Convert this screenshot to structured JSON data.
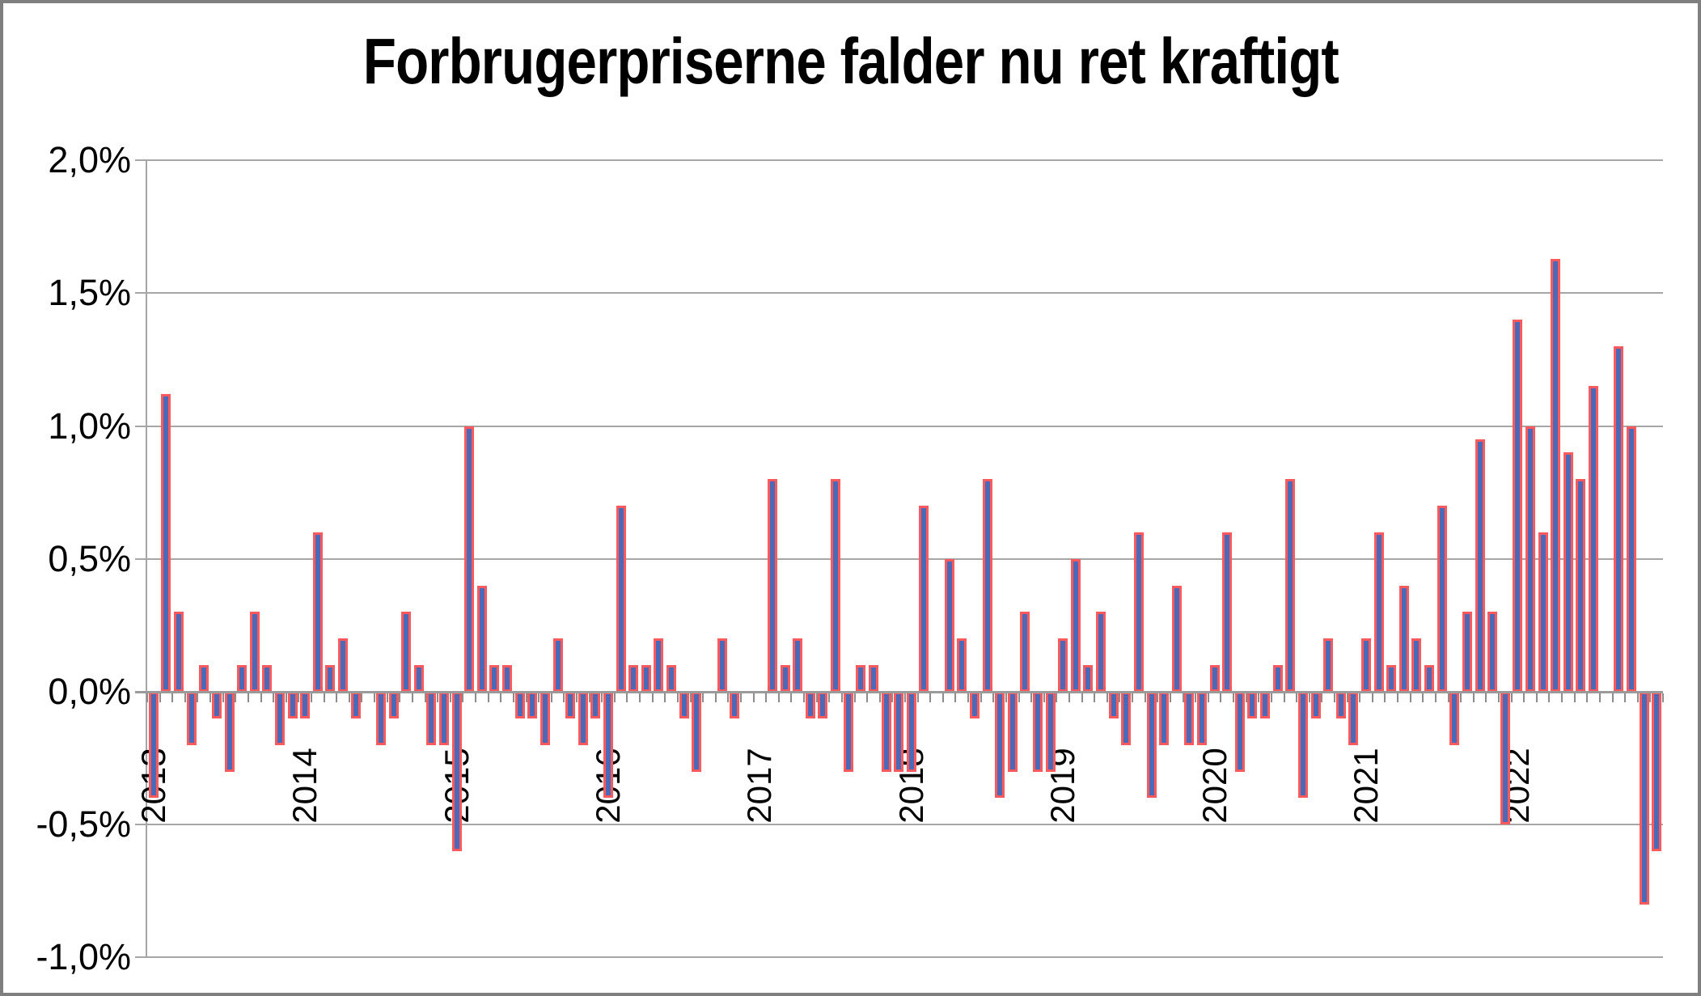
{
  "title": "Forbrugerpriserne falder nu ret kraftigt",
  "chart_data": {
    "type": "bar",
    "title": "Forbrugerpriserne falder nu ret kraftigt",
    "x_frequency": "monthly",
    "x_start": "2013-01",
    "x_end": "2022-12",
    "year_labels": [
      "2013",
      "2014",
      "2015",
      "2016",
      "2017",
      "2018",
      "2019",
      "2020",
      "2021",
      "2022"
    ],
    "values": [
      -0.4,
      1.12,
      0.3,
      -0.2,
      0.1,
      -0.1,
      -0.3,
      0.1,
      0.3,
      0.1,
      -0.2,
      -0.1,
      -0.1,
      0.6,
      0.1,
      0.2,
      -0.1,
      0.0,
      -0.2,
      -0.1,
      0.3,
      0.1,
      -0.2,
      -0.2,
      -0.6,
      1.0,
      0.4,
      0.1,
      0.1,
      -0.1,
      -0.1,
      -0.2,
      0.2,
      -0.1,
      -0.2,
      -0.1,
      -0.4,
      0.7,
      0.1,
      0.1,
      0.2,
      0.1,
      -0.1,
      -0.3,
      0.0,
      0.2,
      -0.1,
      0.0,
      0.0,
      0.8,
      0.1,
      0.2,
      -0.1,
      -0.1,
      0.8,
      -0.3,
      0.1,
      0.1,
      -0.3,
      -0.3,
      -0.3,
      0.7,
      0.0,
      0.5,
      0.2,
      -0.1,
      0.8,
      -0.4,
      -0.3,
      0.3,
      -0.3,
      -0.3,
      0.2,
      0.5,
      0.1,
      0.3,
      -0.1,
      -0.2,
      0.6,
      -0.4,
      -0.2,
      0.4,
      -0.2,
      -0.2,
      0.1,
      0.6,
      -0.3,
      -0.1,
      -0.1,
      0.1,
      0.8,
      -0.4,
      -0.1,
      0.2,
      -0.1,
      -0.2,
      0.2,
      0.6,
      0.1,
      0.4,
      0.2,
      0.1,
      0.7,
      -0.2,
      0.3,
      0.95,
      0.3,
      -0.5,
      1.4,
      1.0,
      0.6,
      1.63,
      0.9,
      0.8,
      1.15,
      0.0,
      1.3,
      1.0,
      -0.8,
      -0.6
    ],
    "yticks": [
      "2,0%",
      "1,5%",
      "1,0%",
      "0,5%",
      "0,0%",
      "-0,5%",
      "-1,0%"
    ],
    "ytick_values": [
      2.0,
      1.5,
      1.0,
      0.5,
      0.0,
      -0.5,
      -1.0
    ],
    "ylim": [
      -1.0,
      2.0
    ],
    "grid": true,
    "legend": false,
    "colors": {
      "bar_fill": "#4a6ab8",
      "bar_outline": "#fa5a5e",
      "gridline": "#a6a6a6",
      "axis": "#8c8c8c",
      "frame": "#7f7f7f",
      "text": "#000000"
    }
  }
}
